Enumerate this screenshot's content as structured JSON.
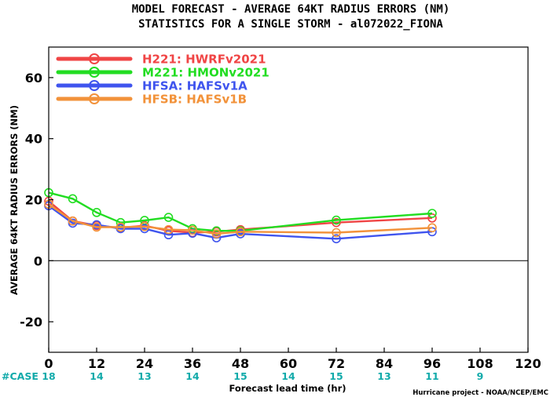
{
  "chart_data": {
    "type": "line",
    "title": "MODEL FORECAST - AVERAGE 64KT RADIUS ERRORS (NM)",
    "subtitle": "STATISTICS FOR A SINGLE STORM - al072022_FIONA",
    "xlabel": "Forecast lead time (hr)",
    "ylabel": "AVERAGE 64KT RADIUS ERRORS (NM)",
    "xlim": [
      0,
      120
    ],
    "ylim": [
      -30,
      70
    ],
    "xticks": [
      0,
      12,
      24,
      36,
      48,
      60,
      72,
      84,
      96,
      108,
      120
    ],
    "yticks": [
      -20,
      0,
      20,
      40,
      60
    ],
    "zero_line": true,
    "legend_position": "top-left",
    "series": [
      {
        "label": "H221: HWRFv2021",
        "color": "#f04545",
        "x": [
          0,
          6,
          12,
          18,
          24,
          30,
          36,
          42,
          48,
          72,
          96
        ],
        "y": [
          19.5,
          13.0,
          11.5,
          10.8,
          11.5,
          9.8,
          9.2,
          9.5,
          10.2,
          12.5,
          14.0
        ]
      },
      {
        "label": "M221: HMONv2021",
        "color": "#22dd22",
        "x": [
          0,
          6,
          12,
          18,
          24,
          30,
          36,
          42,
          48,
          72,
          96
        ],
        "y": [
          22.3,
          20.3,
          15.8,
          12.5,
          13.2,
          14.2,
          10.5,
          9.8,
          9.8,
          13.3,
          15.5
        ]
      },
      {
        "label": "HFSA: HAFSv1A",
        "color": "#3f54ee",
        "x": [
          0,
          6,
          12,
          18,
          24,
          30,
          36,
          42,
          48,
          72,
          96
        ],
        "y": [
          18.0,
          12.3,
          11.8,
          10.5,
          10.5,
          8.5,
          9.0,
          7.5,
          8.8,
          7.2,
          9.5
        ]
      },
      {
        "label": "HFSB: HAFSv1B",
        "color": "#f2923a",
        "x": [
          0,
          6,
          12,
          18,
          24,
          30,
          36,
          42,
          48,
          72,
          96
        ],
        "y": [
          18.5,
          13.0,
          11.0,
          11.0,
          11.2,
          10.2,
          10.0,
          8.8,
          9.5,
          9.2,
          10.8
        ]
      }
    ],
    "case_label": "#CASE",
    "cases": [
      {
        "x": 0,
        "n": "18"
      },
      {
        "x": 12,
        "n": "14"
      },
      {
        "x": 24,
        "n": "13"
      },
      {
        "x": 36,
        "n": "14"
      },
      {
        "x": 48,
        "n": "15"
      },
      {
        "x": 60,
        "n": "14"
      },
      {
        "x": 72,
        "n": "15"
      },
      {
        "x": 84,
        "n": "13"
      },
      {
        "x": 96,
        "n": "11"
      },
      {
        "x": 108,
        "n": "9"
      }
    ],
    "credit": "Hurricane project - NOAA/NCEP/EMC"
  }
}
